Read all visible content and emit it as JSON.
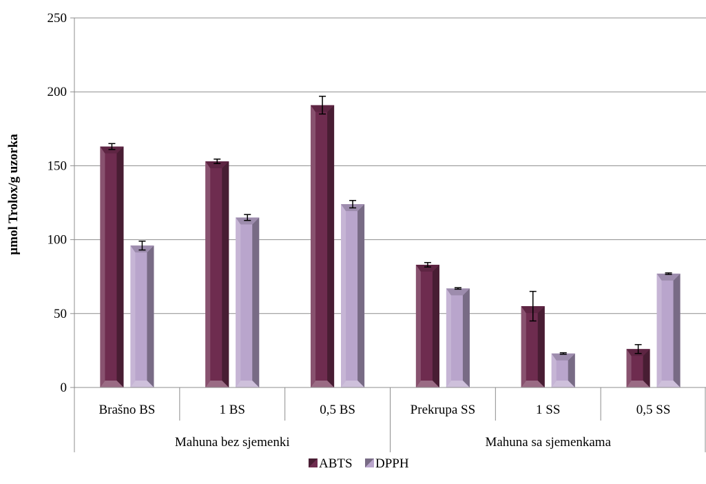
{
  "chart_data": {
    "type": "bar",
    "ylabel": "µmol Trolox/g uzorka",
    "ylim": [
      0,
      250
    ],
    "yticks": [
      0,
      50,
      100,
      150,
      200,
      250
    ],
    "grid": true,
    "legend_position": "bottom",
    "categories": [
      "Brašno BS",
      "1 BS",
      "0,5 BS",
      "Prekrupa SS",
      "1 SS",
      "0,5 SS"
    ],
    "groups": [
      {
        "label": "Mahuna bez sjemenki",
        "categories": [
          "Brašno BS",
          "1 BS",
          "0,5 BS"
        ]
      },
      {
        "label": "Mahuna sa sjemenkama",
        "categories": [
          "Prekrupa SS",
          "1 SS",
          "0,5 SS"
        ]
      }
    ],
    "series": [
      {
        "name": "ABTS",
        "color": "#6e2c4f",
        "values": [
          163,
          153,
          191,
          83,
          55,
          26
        ],
        "errors": [
          2,
          1.5,
          6,
          1.5,
          10,
          3
        ]
      },
      {
        "name": "DPPH",
        "color": "#b9a5cc",
        "values": [
          96,
          115,
          124,
          67,
          23,
          77
        ],
        "errors": [
          3,
          2,
          2.5,
          0.5,
          0.5,
          0.5
        ]
      }
    ]
  }
}
